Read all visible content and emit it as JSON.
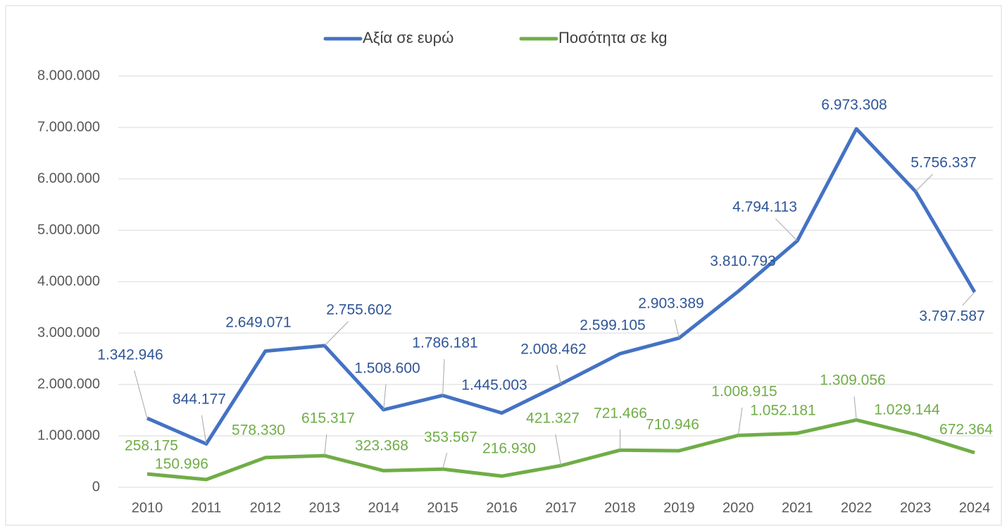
{
  "chart_data": {
    "type": "line",
    "categories": [
      "2010",
      "2011",
      "2012",
      "2013",
      "2014",
      "2015",
      "2016",
      "2017",
      "2018",
      "2019",
      "2020",
      "2021",
      "2022",
      "2023",
      "2024"
    ],
    "series": [
      {
        "name": "Αξία σε ευρώ",
        "color": "#4472c4",
        "values": [
          1342946,
          844177,
          2649071,
          2755602,
          1508600,
          1786181,
          1445003,
          2008462,
          2599105,
          2903389,
          3810793,
          4794113,
          6973308,
          5756337,
          3797587
        ],
        "value_labels": [
          "1.342.946",
          "844.177",
          "2.649.071",
          "2.755.602",
          "1.508.600",
          "1.786.181",
          "1.445.003",
          "2.008.462",
          "2.599.105",
          "2.903.389",
          "3.810.793",
          "4.794.113",
          "6.973.308",
          "5.756.337",
          "3.797.587"
        ]
      },
      {
        "name": "Ποσότητα σε kg",
        "color": "#70ad47",
        "values": [
          258175,
          150996,
          578330,
          615317,
          323368,
          353567,
          216930,
          421327,
          721466,
          710946,
          1008915,
          1052181,
          1309056,
          1029144,
          672364
        ],
        "value_labels": [
          "258.175",
          "150.996",
          "578.330",
          "615.317",
          "323.368",
          "353.567",
          "216.930",
          "421.327",
          "721.466",
          "710.946",
          "1.008.915",
          "1.052.181",
          "1.309.056",
          "1.029.144",
          "672.364"
        ]
      }
    ],
    "ylim": [
      0,
      8000000
    ],
    "yticks": [
      0,
      {
        "value": 1000000,
        "label": "1.000.000"
      },
      {
        "value": 2000000,
        "label": "2.000.000"
      },
      {
        "value": 3000000,
        "label": "3.000.000"
      },
      {
        "value": 4000000,
        "label": "4.000.000"
      },
      {
        "value": 5000000,
        "label": "5.000.000"
      },
      {
        "value": 6000000,
        "label": "6.000.000"
      },
      {
        "value": 7000000,
        "label": "7.000.000"
      },
      {
        "value": 8000000,
        "label": "8.000.000"
      }
    ],
    "grid": true,
    "legend": "top"
  }
}
